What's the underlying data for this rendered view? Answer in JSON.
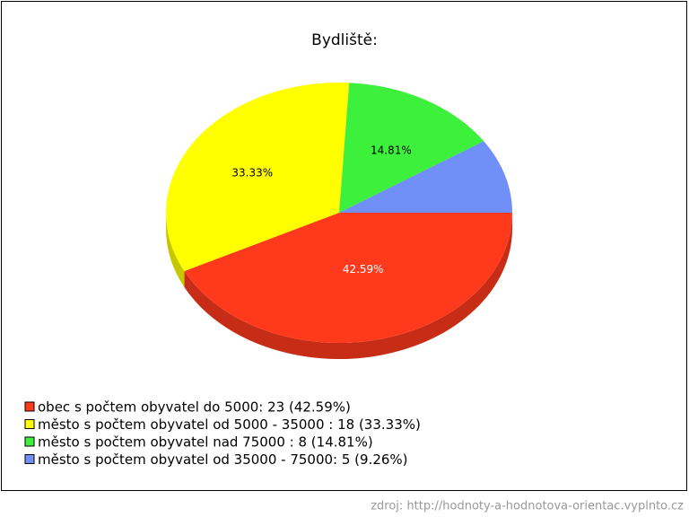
{
  "chart_data": {
    "type": "pie",
    "title": "Bydliště:",
    "categories": [
      "obec s počtem obyvatel do 5000: 23 (42.59%)",
      "město s počtem obyvatel od 5000 - 35000 : 18 (33.33%)",
      "město s počtem obyvatel nad 75000  : 8 (14.81%)",
      "město s počtem obyvatel od 35000 - 75000: 5 (9.26%)"
    ],
    "values": [
      42.59,
      33.33,
      14.81,
      9.26
    ],
    "value_labels": [
      "42.59%",
      "33.33%",
      "14.81%",
      null
    ],
    "colors": [
      "#ff3a1c",
      "#ffff00",
      "#3cf03c",
      "#7090f8"
    ],
    "legend": "bottom-left",
    "source": "zdroj: http://hodnoty-a-hodnotova-orientac.vyplnto.cz"
  }
}
